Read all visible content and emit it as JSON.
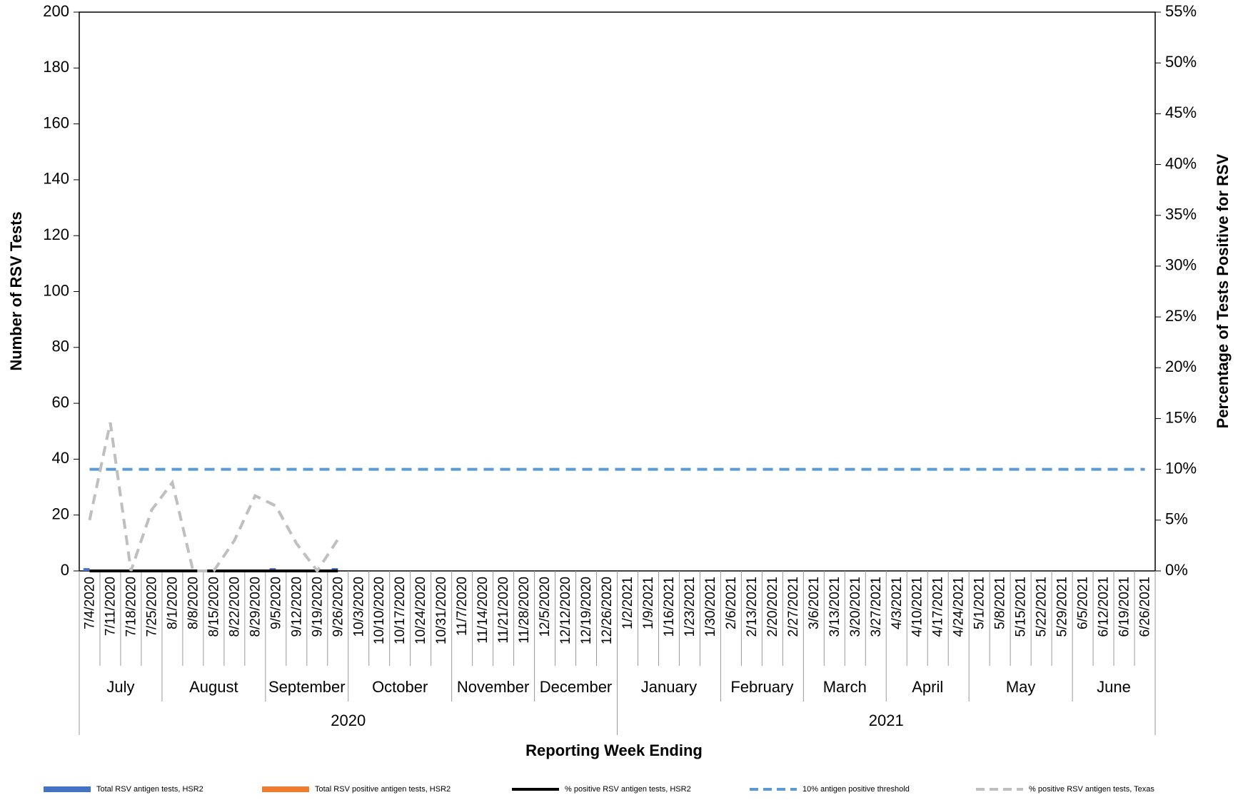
{
  "chart_data": {
    "type": "bar",
    "x_label": "Reporting Week Ending",
    "y_label": "Number of RSV Tests",
    "y2_label": "Percentage of Tests Positive for RSV",
    "categories": [
      "7/4/2020",
      "7/11/2020",
      "7/18/2020",
      "7/25/2020",
      "8/1/2020",
      "8/8/2020",
      "8/15/2020",
      "8/22/2020",
      "8/29/2020",
      "9/5/2020",
      "9/12/2020",
      "9/19/2020",
      "9/26/2020",
      "10/3/2020",
      "10/10/2020",
      "10/17/2020",
      "10/24/2020",
      "10/31/2020",
      "11/7/2020",
      "11/14/2020",
      "11/21/2020",
      "11/28/2020",
      "12/5/2020",
      "12/12/2020",
      "12/19/2020",
      "12/26/2020",
      "1/2/2021",
      "1/9/2021",
      "1/16/2021",
      "1/23/2021",
      "1/30/2021",
      "2/6/2021",
      "2/13/2021",
      "2/20/2021",
      "2/27/2021",
      "3/6/2021",
      "3/13/2021",
      "3/20/2021",
      "3/27/2021",
      "4/3/2021",
      "4/10/2021",
      "4/17/2021",
      "4/24/2021",
      "5/1/2021",
      "5/8/2021",
      "5/15/2021",
      "5/22/2021",
      "5/29/2021",
      "6/5/2021",
      "6/12/2021",
      "6/19/2021",
      "6/26/2021"
    ],
    "months": [
      "July",
      "August",
      "September",
      "October",
      "November",
      "December",
      "January",
      "February",
      "March",
      "April",
      "May",
      "June"
    ],
    "years": [
      "2020",
      "2021"
    ],
    "series": [
      {
        "name": "Total RSV antigen tests, HSR2",
        "kind": "bar",
        "color": "#4472c4",
        "values": [
          1,
          0,
          0,
          0,
          0,
          0,
          0,
          0,
          0,
          1,
          0,
          0,
          1,
          null,
          null,
          null,
          null,
          null,
          null,
          null,
          null,
          null,
          null,
          null,
          null,
          null,
          null,
          null,
          null,
          null,
          null,
          null,
          null,
          null,
          null,
          null,
          null,
          null,
          null,
          null,
          null,
          null,
          null,
          null,
          null,
          null,
          null,
          null,
          null,
          null,
          null,
          null
        ]
      },
      {
        "name": "Total RSV positive antigen tests, HSR2",
        "kind": "bar",
        "color": "#ed7d31",
        "values": [
          0,
          0,
          0,
          0,
          0,
          0,
          0,
          0,
          0,
          0,
          0,
          0,
          0,
          null,
          null,
          null,
          null,
          null,
          null,
          null,
          null,
          null,
          null,
          null,
          null,
          null,
          null,
          null,
          null,
          null,
          null,
          null,
          null,
          null,
          null,
          null,
          null,
          null,
          null,
          null,
          null,
          null,
          null,
          null,
          null,
          null,
          null,
          null,
          null,
          null,
          null,
          null
        ]
      },
      {
        "name": "% positive RSV antigen tests, HSR2",
        "kind": "line",
        "axis": "y2",
        "color": "#000000",
        "dashed": false,
        "values": [
          0,
          0,
          0,
          0,
          0,
          0,
          0,
          0,
          0,
          0,
          0,
          0,
          0,
          null,
          null,
          null,
          null,
          null,
          null,
          null,
          null,
          null,
          null,
          null,
          null,
          null,
          null,
          null,
          null,
          null,
          null,
          null,
          null,
          null,
          null,
          null,
          null,
          null,
          null,
          null,
          null,
          null,
          null,
          null,
          null,
          null,
          null,
          null,
          null,
          null,
          null,
          null
        ]
      },
      {
        "name": "10% antigen positive threshold",
        "kind": "line",
        "axis": "y2",
        "color": "#5b9bd5",
        "dashed": true,
        "values": [
          10,
          10,
          10,
          10,
          10,
          10,
          10,
          10,
          10,
          10,
          10,
          10,
          10,
          10,
          10,
          10,
          10,
          10,
          10,
          10,
          10,
          10,
          10,
          10,
          10,
          10,
          10,
          10,
          10,
          10,
          10,
          10,
          10,
          10,
          10,
          10,
          10,
          10,
          10,
          10,
          10,
          10,
          10,
          10,
          10,
          10,
          10,
          10,
          10,
          10,
          10,
          10
        ]
      },
      {
        "name": "% positive RSV antigen tests, Texas",
        "kind": "line",
        "axis": "y2",
        "color": "#bfbfbf",
        "dashed": true,
        "values": [
          5.0,
          14.6,
          0,
          6.0,
          8.7,
          0,
          0,
          3.0,
          7.4,
          6.4,
          2.7,
          0,
          3.1,
          null,
          null,
          null,
          null,
          null,
          null,
          null,
          null,
          null,
          null,
          null,
          null,
          null,
          null,
          null,
          null,
          null,
          null,
          null,
          null,
          null,
          null,
          null,
          null,
          null,
          null,
          null,
          null,
          null,
          null,
          null,
          null,
          null,
          null,
          null,
          null,
          null,
          null,
          null
        ]
      }
    ],
    "ylim": [
      0,
      200
    ],
    "yticks": [
      0,
      20,
      40,
      60,
      80,
      100,
      120,
      140,
      160,
      180,
      200
    ],
    "y2lim": [
      0,
      55
    ],
    "y2ticks": [
      {
        "value": 0,
        "label": "0%"
      },
      {
        "value": 5,
        "label": "5%"
      },
      {
        "value": 10,
        "label": "10%"
      },
      {
        "value": 15,
        "label": "15%"
      },
      {
        "value": 20,
        "label": "20%"
      },
      {
        "value": 25,
        "label": "25%"
      },
      {
        "value": 30,
        "label": "30%"
      },
      {
        "value": 35,
        "label": "35%"
      },
      {
        "value": 40,
        "label": "40%"
      },
      {
        "value": 45,
        "label": "45%"
      },
      {
        "value": 50,
        "label": "50%"
      },
      {
        "value": 55,
        "label": "55%"
      }
    ]
  }
}
